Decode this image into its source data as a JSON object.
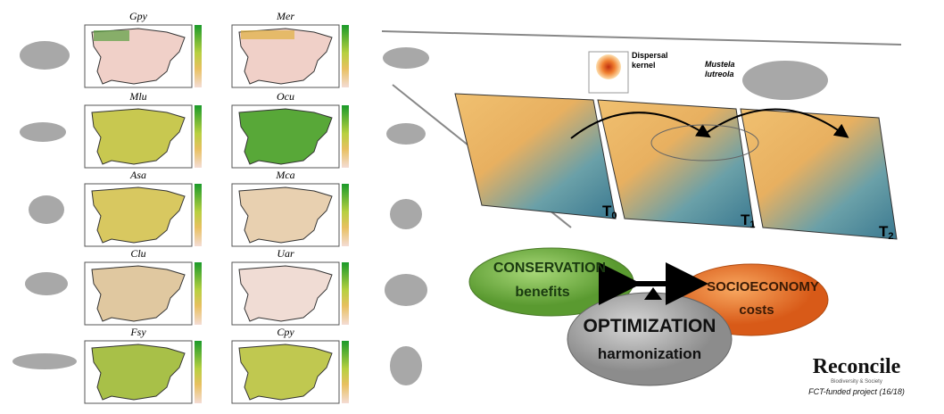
{
  "species_maps": [
    "Gpy",
    "Mer",
    "Mlu",
    "Ocu",
    "Asa",
    "Mca",
    "Clu",
    "Uar",
    "Fsy",
    "Cpy"
  ],
  "dispersal_label": [
    "Dispersal",
    "kernel"
  ],
  "species_label": [
    "Mustela",
    "lutreola"
  ],
  "time_steps": [
    {
      "base": "T",
      "sub": "0"
    },
    {
      "base": "T",
      "sub": "1"
    },
    {
      "base": "T",
      "sub": "2"
    }
  ],
  "conservation": [
    "CONSERVATION",
    "benefits"
  ],
  "socioeconomy": [
    "SOCIOECONOMY",
    "costs"
  ],
  "optimization": [
    "OPTIMIZATION",
    "harmonization"
  ],
  "logo": {
    "name": "Reconcile",
    "tagline": "Biodiversity & Society",
    "note": "FCT-funded project (16/18)"
  }
}
